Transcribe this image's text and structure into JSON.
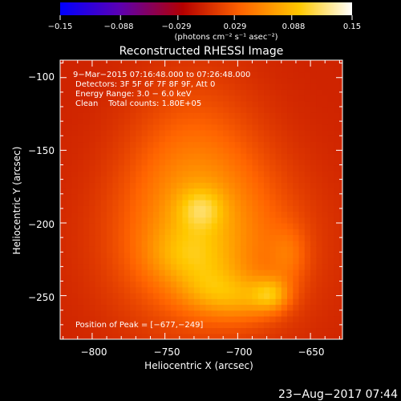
{
  "chart_data": {
    "type": "heatmap",
    "title": "Reconstructed RHESSI Image",
    "xlabel": "Heliocentric X (arcsec)",
    "ylabel": "Heliocentric Y (arcsec)",
    "xlim": [
      -822,
      -628
    ],
    "ylim": [
      -280,
      -88
    ],
    "xticks": [
      -800,
      -750,
      -700,
      -650
    ],
    "xtick_labels": [
      "−800",
      "−750",
      "−700",
      "−650"
    ],
    "yticks": [
      -100,
      -150,
      -200,
      -250
    ],
    "ytick_labels": [
      "−100",
      "−150",
      "−200",
      "−250"
    ],
    "colorbar": {
      "range": [
        -0.15,
        0.15
      ],
      "tick_values": [
        -0.15,
        -0.088,
        -0.029,
        0.029,
        0.088,
        0.15
      ],
      "tick_labels": [
        "−0.15",
        "−0.088",
        "−0.029",
        "0.029",
        "0.088",
        "0.15"
      ],
      "units": "(photons cm⁻² s⁻¹ asec⁻²)",
      "colors": [
        "#0000ff",
        "#5a00b4",
        "#b40000",
        "#ff6400",
        "#ffc800",
        "#ffffff"
      ]
    },
    "annotations": [
      "9−Mar−2015 07:16:48.000 to 07:26:48.000",
      "Detectors: 3F 5F 6F 7F 8F 9F, Att 0",
      "Energy Range: 3.0 − 6.0 keV",
      "Clean    Total counts: 1.80E+05"
    ],
    "peak_label": "Position of Peak = [−677,−249]",
    "peak": [
      -677,
      -249
    ],
    "sources": [
      {
        "x": -725,
        "y": -190,
        "sx": 11,
        "sy": 10,
        "amp": 0.04
      },
      {
        "x": -735,
        "y": -222,
        "sx": 20,
        "sy": 14,
        "amp": 0.03
      },
      {
        "x": -718,
        "y": -246,
        "sx": 16,
        "sy": 12,
        "amp": 0.034
      },
      {
        "x": -694,
        "y": -252,
        "sx": 16,
        "sy": 11,
        "amp": 0.034
      },
      {
        "x": -677,
        "y": -249,
        "sx": 9,
        "sy": 8,
        "amp": 0.055
      },
      {
        "x": -665,
        "y": -222,
        "sx": 9,
        "sy": 14,
        "amp": 0.026
      },
      {
        "x": -730,
        "y": -168,
        "sx": 32,
        "sy": 48,
        "amp": 0.04
      },
      {
        "x": -720,
        "y": -215,
        "sx": 45,
        "sy": 42,
        "amp": 0.052
      }
    ],
    "background_level": -0.003,
    "footer_date": "23−Aug−2017 07:44"
  }
}
